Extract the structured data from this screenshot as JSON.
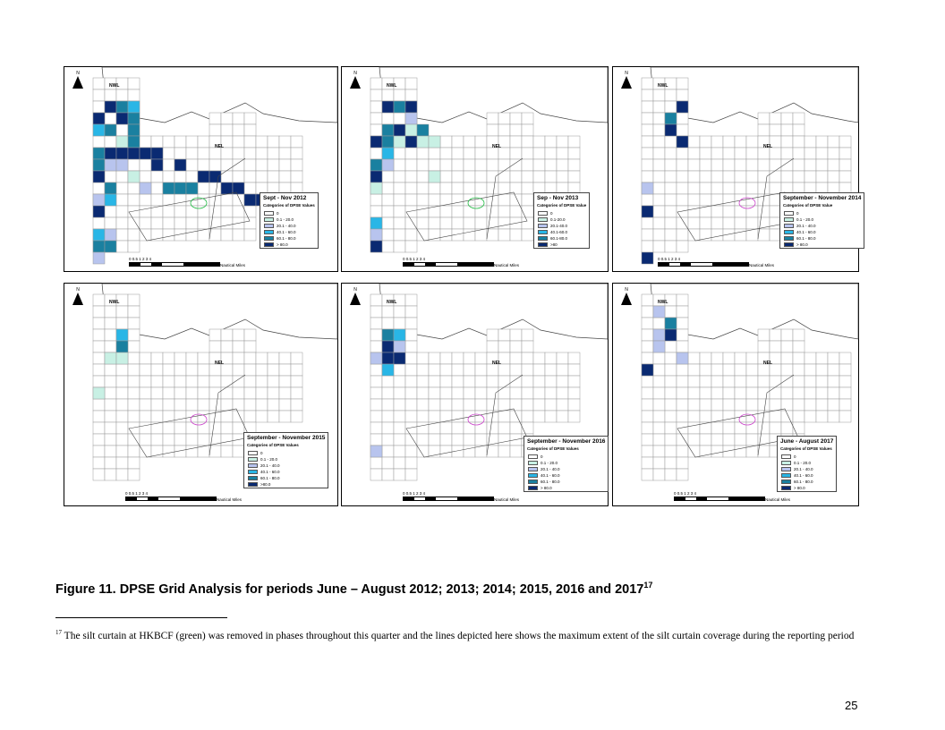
{
  "panels": [
    {
      "title": "Sept - Nov 2012",
      "cat_title": "Categories of DPSE Values",
      "legend": [
        "0",
        "0.1 - 20.0",
        "20.1 - 40.0",
        "40.1 - 60.0",
        "60.1 - 80.0",
        "> 80.0"
      ],
      "scale": "0  0.5  1        2        3        4",
      "scale_unit": "Nautical Miles",
      "label_nwl": "NWL",
      "label_nel": "NEL",
      "north": "N",
      "cells": [
        [
          1,
          2,
          5
        ],
        [
          2,
          2,
          4
        ],
        [
          3,
          2,
          3
        ],
        [
          0,
          3,
          5
        ],
        [
          2,
          3,
          5
        ],
        [
          3,
          3,
          4
        ],
        [
          0,
          4,
          3
        ],
        [
          1,
          4,
          4
        ],
        [
          3,
          4,
          4
        ],
        [
          2,
          5,
          1
        ],
        [
          3,
          5,
          4
        ],
        [
          0,
          6,
          4
        ],
        [
          1,
          6,
          5
        ],
        [
          2,
          6,
          5
        ],
        [
          3,
          6,
          5
        ],
        [
          4,
          6,
          5
        ],
        [
          5,
          6,
          5
        ],
        [
          0,
          7,
          4
        ],
        [
          1,
          7,
          2
        ],
        [
          2,
          7,
          2
        ],
        [
          5,
          7,
          5
        ],
        [
          7,
          7,
          5
        ],
        [
          0,
          8,
          5
        ],
        [
          3,
          8,
          1
        ],
        [
          9,
          8,
          5
        ],
        [
          10,
          8,
          5
        ],
        [
          1,
          9,
          4
        ],
        [
          4,
          9,
          2
        ],
        [
          6,
          9,
          4
        ],
        [
          7,
          9,
          4
        ],
        [
          8,
          9,
          4
        ],
        [
          11,
          9,
          5
        ],
        [
          12,
          9,
          5
        ],
        [
          0,
          10,
          2
        ],
        [
          1,
          10,
          3
        ],
        [
          13,
          10,
          5
        ],
        [
          14,
          10,
          5
        ],
        [
          0,
          11,
          5
        ],
        [
          0,
          13,
          3
        ],
        [
          1,
          13,
          2
        ],
        [
          0,
          14,
          4
        ],
        [
          1,
          14,
          4
        ],
        [
          0,
          15,
          2
        ]
      ]
    },
    {
      "title": "Sep - Nov 2013",
      "cat_title": "Categories of DPSE Value",
      "legend": [
        "0",
        "0.1-20.0",
        "20.1-40.0",
        "40.1-60.0",
        "60.1-80.0",
        ">80"
      ],
      "scale": "0  0.5  1        2        3        4",
      "scale_unit": "Nautical Miles",
      "label_nwl": "NWL",
      "label_nel": "NEL",
      "north": "N",
      "cells": [
        [
          1,
          2,
          5
        ],
        [
          2,
          2,
          4
        ],
        [
          3,
          2,
          5
        ],
        [
          3,
          3,
          2
        ],
        [
          1,
          4,
          4
        ],
        [
          2,
          4,
          5
        ],
        [
          3,
          4,
          1
        ],
        [
          4,
          4,
          4
        ],
        [
          0,
          5,
          5
        ],
        [
          1,
          5,
          4
        ],
        [
          2,
          5,
          1
        ],
        [
          3,
          5,
          5
        ],
        [
          4,
          5,
          1
        ],
        [
          5,
          5,
          1
        ],
        [
          1,
          6,
          3
        ],
        [
          0,
          7,
          4
        ],
        [
          1,
          7,
          2
        ],
        [
          0,
          8,
          5
        ],
        [
          5,
          8,
          1
        ],
        [
          0,
          9,
          1
        ],
        [
          0,
          12,
          3
        ],
        [
          0,
          13,
          2
        ],
        [
          0,
          14,
          5
        ]
      ]
    },
    {
      "title": "September - November 2014",
      "cat_title": "Categories of DPSE Value",
      "legend": [
        "0",
        "0.1 - 20.0",
        "20.1 - 40.0",
        "40.1 - 60.0",
        "60.1 - 80.0",
        "> 80.0"
      ],
      "scale": "0  0.5  1        2        3        4",
      "scale_unit": "Nautical Miles",
      "label_nwl": "NWL",
      "label_nel": "NEL",
      "north": "N",
      "cells": [
        [
          3,
          2,
          5
        ],
        [
          2,
          3,
          4
        ],
        [
          2,
          4,
          5
        ],
        [
          3,
          5,
          5
        ],
        [
          0,
          9,
          2
        ],
        [
          0,
          11,
          5
        ],
        [
          0,
          15,
          5
        ]
      ]
    },
    {
      "title": "September - November 2015",
      "cat_title": "Categories of DPSE Values",
      "legend": [
        "0",
        "0.1 - 20.0",
        "20.1 - 40.0",
        "40.1 - 60.0",
        "60.1 - 80.0",
        ">80.0"
      ],
      "scale": "0  0.5  1        2        3        4",
      "scale_unit": "Nautical Miles",
      "label_nwl": "NWL",
      "label_nel": "NEL",
      "north": "N",
      "cells": [
        [
          2,
          3,
          3
        ],
        [
          2,
          4,
          4
        ],
        [
          1,
          5,
          1
        ],
        [
          2,
          5,
          1
        ],
        [
          0,
          8,
          1
        ]
      ]
    },
    {
      "title": "September - November 2016",
      "cat_title": "Categories of DPSE Values",
      "legend": [
        "0",
        "0.1 - 20.0",
        "20.1 - 40.0",
        "40.1 - 60.0",
        "60.1 - 80.0",
        "> 80.0"
      ],
      "scale": "0  0.5  1        2        3        4",
      "scale_unit": "Nautical Miles",
      "label_nwl": "NWL",
      "label_nel": "NEL",
      "north": "N",
      "cells": [
        [
          1,
          3,
          4
        ],
        [
          2,
          3,
          3
        ],
        [
          1,
          4,
          5
        ],
        [
          2,
          4,
          2
        ],
        [
          0,
          5,
          2
        ],
        [
          1,
          5,
          5
        ],
        [
          2,
          5,
          5
        ],
        [
          1,
          6,
          3
        ],
        [
          0,
          13,
          2
        ]
      ]
    },
    {
      "title": "June - August 2017",
      "cat_title": "Categories of DPSE Values",
      "legend": [
        "0",
        "0.1 - 20.0",
        "20.1 - 40.0",
        "40.1 - 60.0",
        "60.1 - 80.0",
        "> 80.0"
      ],
      "scale": "0  0.5  1        2        3        4",
      "scale_unit": "Nautical Miles",
      "label_nwl": "NWL",
      "label_nel": "NEL",
      "north": "N",
      "cells": [
        [
          1,
          1,
          2
        ],
        [
          2,
          2,
          4
        ],
        [
          1,
          3,
          2
        ],
        [
          2,
          3,
          5
        ],
        [
          1,
          4,
          2
        ],
        [
          3,
          5,
          2
        ],
        [
          0,
          6,
          5
        ]
      ]
    }
  ],
  "colors": {
    "c0": "#ffffff",
    "c1": "#c8f0e4",
    "c2": "#b8c4ee",
    "c3": "#29b6e6",
    "c4": "#1a80a0",
    "c5": "#0a2a72",
    "grid": "#9a9a9a",
    "coast": "#444444",
    "silt": "#22bb44",
    "curtain": "#cc44cc"
  },
  "caption": {
    "text": "Figure 11.  DPSE Grid Analysis for periods June – August 2012; 2013; 2014; 2015, 2016 and 2017",
    "sup": "17"
  },
  "footnote": {
    "sup": "17",
    "text": "The silt curtain at HKBCF (green) was removed in phases throughout this quarter and the lines depicted here shows the maximum extent of the silt curtain coverage during the reporting period"
  },
  "page_number": "25"
}
